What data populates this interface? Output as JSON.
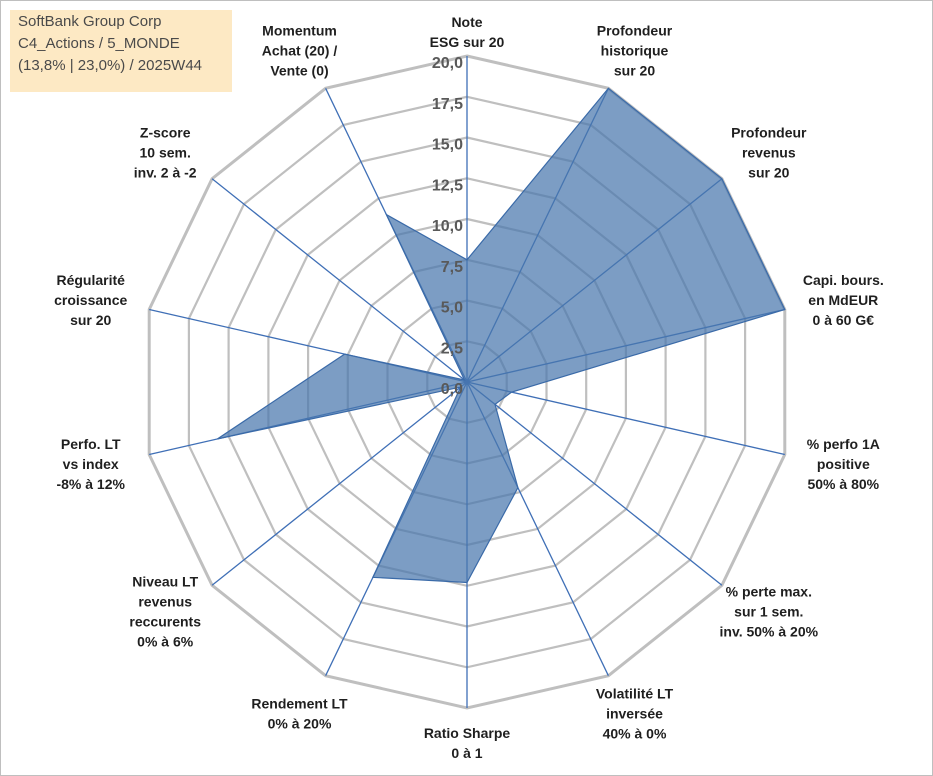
{
  "header": {
    "company": "SoftBank Group Corp",
    "category": "C4_Actions / 5_MONDE",
    "info": "(13,8% | 23,0%) / 2025W44"
  },
  "colors": {
    "fill": "#4a77ad",
    "stroke": "#3a6aa8",
    "axis": "#3f6fb6",
    "grid": "#bfbfbf",
    "title_bg": "#fde9c4"
  },
  "chart_data": {
    "type": "radar",
    "title": "SoftBank Group Corp",
    "rmin": 0,
    "rmax": 20,
    "ticks": [
      "0,0",
      "2,5",
      "5,0",
      "7,5",
      "10,0",
      "12,5",
      "15,0",
      "17,5",
      "20,0"
    ],
    "categories": [
      {
        "lines": [
          "Note",
          "ESG sur 20"
        ]
      },
      {
        "lines": [
          "Profondeur",
          "historique",
          "sur 20"
        ]
      },
      {
        "lines": [
          "Profondeur",
          "revenus",
          "sur 20"
        ]
      },
      {
        "lines": [
          "Capi. bours.",
          "en MdEUR",
          "0 à 60 G€"
        ]
      },
      {
        "lines": [
          "% perfo 1A",
          "positive",
          "50% à 80%"
        ]
      },
      {
        "lines": [
          "% perte max.",
          "sur 1 sem.",
          "inv. 50% à 20%"
        ]
      },
      {
        "lines": [
          "Volatilité LT",
          "inversée",
          "40% à 0%"
        ]
      },
      {
        "lines": [
          "Ratio Sharpe",
          "0 à 1"
        ]
      },
      {
        "lines": [
          "Rendement LT",
          "0% à 20%"
        ]
      },
      {
        "lines": [
          "Niveau LT",
          "revenus",
          "reccurents",
          "0% à 6%"
        ]
      },
      {
        "lines": [
          "Perfo. LT",
          "vs index",
          "-8% à 12%"
        ]
      },
      {
        "lines": [
          "Régularité",
          "croissance",
          "sur 20"
        ]
      },
      {
        "lines": [
          "Z-score",
          "10 sem.",
          "inv. 2 à -2"
        ]
      },
      {
        "lines": [
          "Momentum",
          "Achat (20) /",
          "Vente (0)"
        ]
      }
    ],
    "series": [
      {
        "name": "SoftBank Group Corp",
        "values": [
          7.5,
          20,
          20,
          20,
          2.8,
          2.2,
          7.2,
          12.3,
          13.3,
          0.5,
          15.7,
          7.7,
          0.2,
          11.4
        ]
      }
    ]
  }
}
